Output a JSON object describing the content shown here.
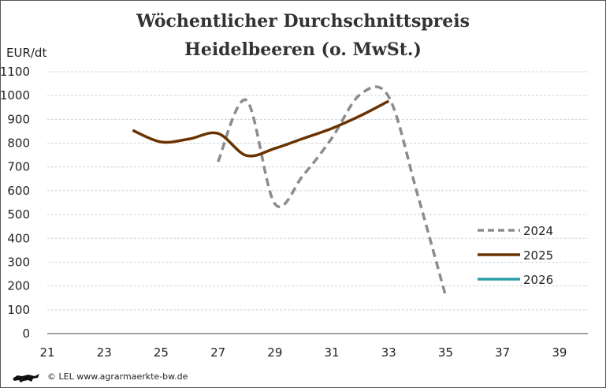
{
  "chart_data": {
    "type": "line",
    "title_line1": "Wöchentlicher Durchschnittspreis",
    "title_line2": "Heidelbeeren (o. MwSt.)",
    "ylabel": "EUR/dt",
    "xlabel": "",
    "xlim": [
      21,
      40
    ],
    "ylim": [
      0,
      1100
    ],
    "x_ticks": [
      "21",
      "23",
      "25",
      "27",
      "29",
      "31",
      "33",
      "35",
      "37",
      "39"
    ],
    "y_ticks": [
      "0",
      "100",
      "200",
      "300",
      "400",
      "500",
      "600",
      "700",
      "800",
      "900",
      "1000",
      "1100"
    ],
    "grid": "horizontal dashed",
    "legend_position": "right",
    "series": [
      {
        "name": "2024",
        "color": "#8c8c8c",
        "style": "dashed",
        "x": [
          27,
          28,
          29,
          30,
          31,
          32,
          33,
          34,
          35
        ],
        "values": [
          722,
          980,
          545,
          666,
          821,
          1005,
          995,
          590,
          159
        ]
      },
      {
        "name": "2025",
        "color": "#6b3200",
        "style": "solid",
        "x": [
          24,
          25,
          26,
          27,
          28,
          29,
          30,
          31,
          32,
          33
        ],
        "values": [
          854,
          805,
          818,
          841,
          748,
          778,
          820,
          862,
          915,
          977
        ]
      },
      {
        "name": "2026",
        "color": "#2aa0a8",
        "style": "solid",
        "x": [],
        "values": []
      }
    ]
  },
  "footer": {
    "text": "© LEL www.agrarmaerkte-bw.de"
  }
}
